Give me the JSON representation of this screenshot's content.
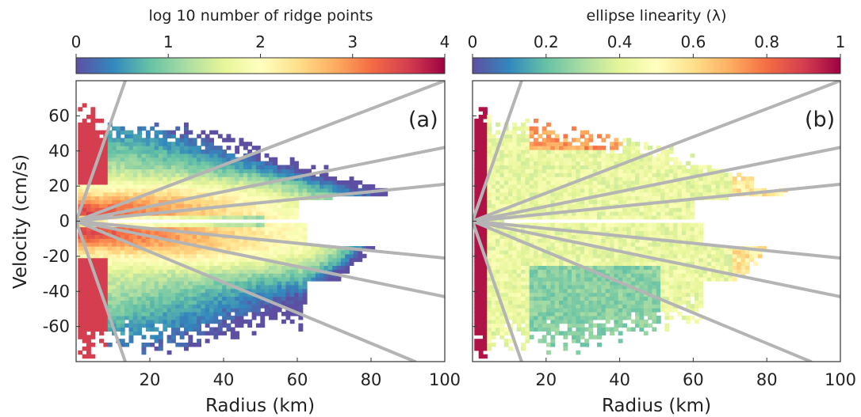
{
  "chart_data": [
    {
      "type": "heatmap",
      "panel_label": "(a)",
      "colorbar": {
        "title": "log 10 number of ridge points",
        "ticks": [
          0,
          1,
          2,
          3,
          4
        ],
        "tick_labels": [
          "0",
          "1",
          "2",
          "3",
          "4"
        ],
        "range": [
          0,
          4
        ],
        "colormap": "Spectral_r"
      },
      "xlabel": "Radius (km)",
      "ylabel": "Velocity (cm/s)",
      "xlim": [
        0,
        100
      ],
      "ylim": [
        -80,
        80
      ],
      "xticks": [
        20,
        40,
        60,
        80,
        100
      ],
      "xtick_labels": [
        "20",
        "40",
        "60",
        "80",
        "100"
      ],
      "yticks": [
        60,
        40,
        20,
        0,
        -20,
        -40,
        -60
      ],
      "ytick_labels": [
        "60",
        "40",
        "20",
        "0",
        "-20",
        "-40",
        "-60"
      ],
      "reference_lines": [
        {
          "slope": 6.0
        },
        {
          "slope": 0.8
        },
        {
          "slope": 0.42
        },
        {
          "slope": 0.21
        },
        {
          "slope": -6.0
        },
        {
          "slope": -0.87
        },
        {
          "slope": -0.43
        },
        {
          "slope": -0.21
        }
      ]
    },
    {
      "type": "heatmap",
      "panel_label": "(b)",
      "colorbar": {
        "title": "ellipse linearity (λ)",
        "ticks": [
          0,
          0.2,
          0.4,
          0.6,
          0.8,
          1
        ],
        "tick_labels": [
          "0",
          "0.2",
          "0.4",
          "0.6",
          "0.8",
          "1"
        ],
        "range": [
          0,
          1
        ],
        "colormap": "Spectral_r"
      },
      "xlabel": "Radius (km)",
      "xlim": [
        0,
        100
      ],
      "ylim": [
        -80,
        80
      ],
      "xticks": [
        20,
        40,
        60,
        80,
        100
      ],
      "xtick_labels": [
        "20",
        "40",
        "60",
        "80",
        "100"
      ],
      "reference_lines": [
        {
          "slope": 6.0
        },
        {
          "slope": 0.8
        },
        {
          "slope": 0.42
        },
        {
          "slope": 0.21
        },
        {
          "slope": -6.0
        },
        {
          "slope": -0.87
        },
        {
          "slope": -0.43
        },
        {
          "slope": -0.21
        }
      ]
    }
  ],
  "colors": {
    "reference_line": "#b4b4b4",
    "axes": "#333333"
  }
}
